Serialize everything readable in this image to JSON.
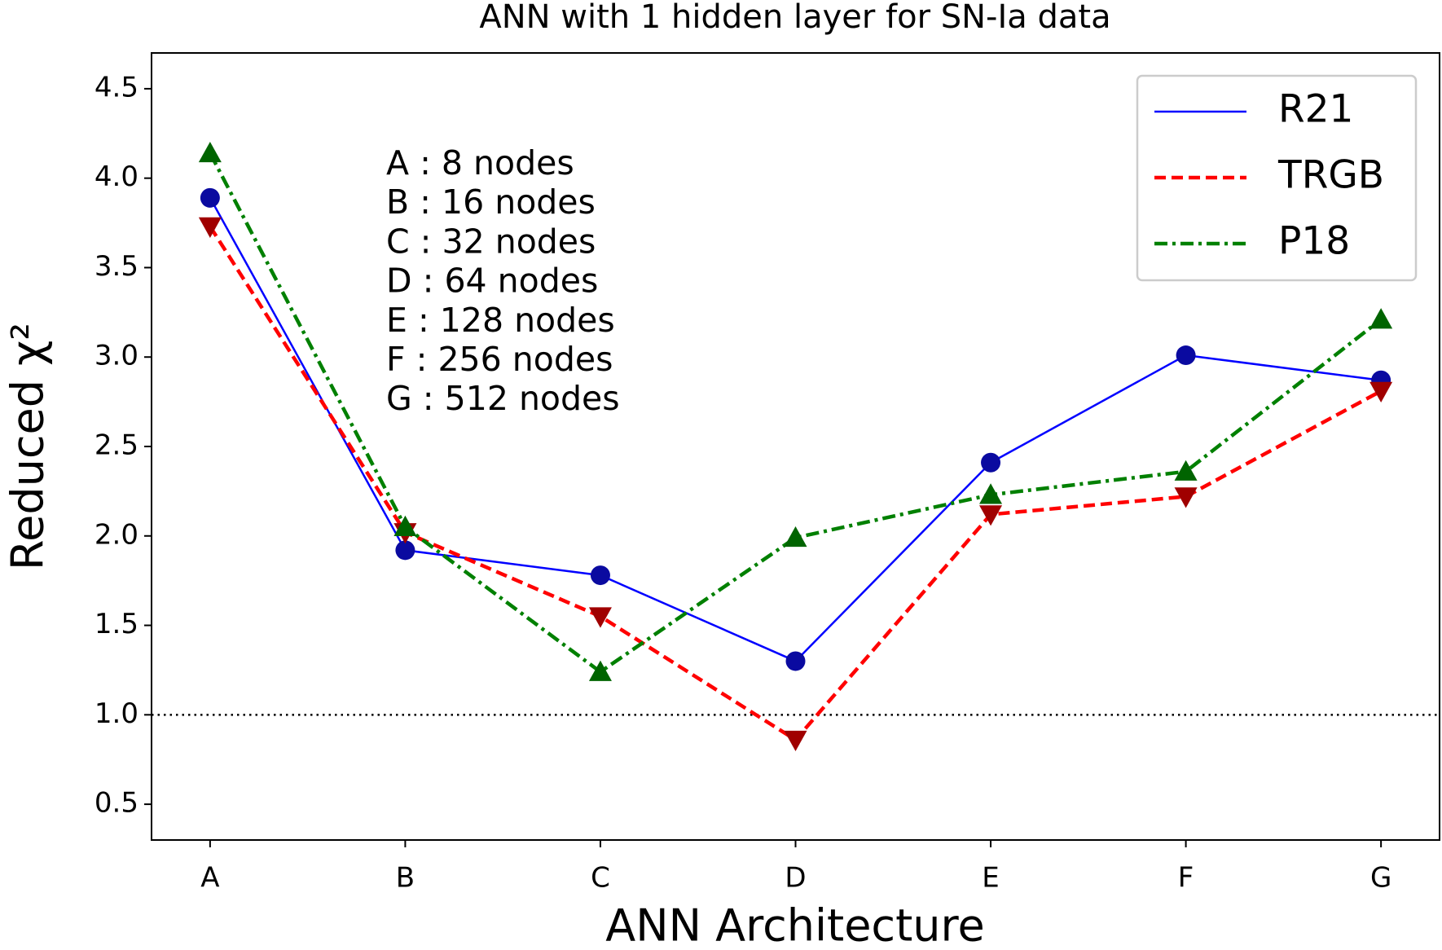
{
  "chart_data": {
    "type": "line",
    "title": "ANN with 1 hidden layer for SN-Ia data",
    "xlabel": "ANN Architecture",
    "ylabel": "Reduced χ²",
    "categories": [
      "A",
      "B",
      "C",
      "D",
      "E",
      "F",
      "G"
    ],
    "series": [
      {
        "name": "R21",
        "color": "#0000ff",
        "marker_color": "#0a0aa0",
        "marker": "circle",
        "linestyle": "solid",
        "values": [
          3.89,
          1.92,
          1.78,
          1.3,
          2.41,
          3.01,
          2.87
        ]
      },
      {
        "name": "TRGB",
        "color": "#ff0000",
        "marker_color": "#a00000",
        "marker": "triangle-down",
        "linestyle": "dashed",
        "values": [
          3.73,
          2.02,
          1.55,
          0.86,
          2.12,
          2.22,
          2.81
        ]
      },
      {
        "name": "P18",
        "color": "#008000",
        "marker_color": "#006400",
        "marker": "triangle-up",
        "linestyle": "dashdot",
        "values": [
          4.14,
          2.05,
          1.24,
          1.99,
          2.23,
          2.36,
          3.21
        ]
      }
    ],
    "ylim": [
      0.3,
      4.7
    ],
    "yticks": [
      {
        "value": 0.5,
        "label": "0.5"
      },
      {
        "value": 1,
        "label": "1.0"
      },
      {
        "value": 1.5,
        "label": "1.5"
      },
      {
        "value": 2,
        "label": "2.0"
      },
      {
        "value": 2.5,
        "label": "2.5"
      },
      {
        "value": 3,
        "label": "3.0"
      },
      {
        "value": 3.5,
        "label": "3.5"
      },
      {
        "value": 4,
        "label": "4.0"
      },
      {
        "value": 4.5,
        "label": "4.5"
      }
    ],
    "reference_line": 1,
    "annotations": [
      "A : 8 nodes",
      "B : 16 nodes",
      "C : 32 nodes",
      "D : 64 nodes",
      "E : 128 nodes",
      "F : 256 nodes",
      "G : 512 nodes"
    ],
    "legend": "upper right",
    "grid": false
  }
}
